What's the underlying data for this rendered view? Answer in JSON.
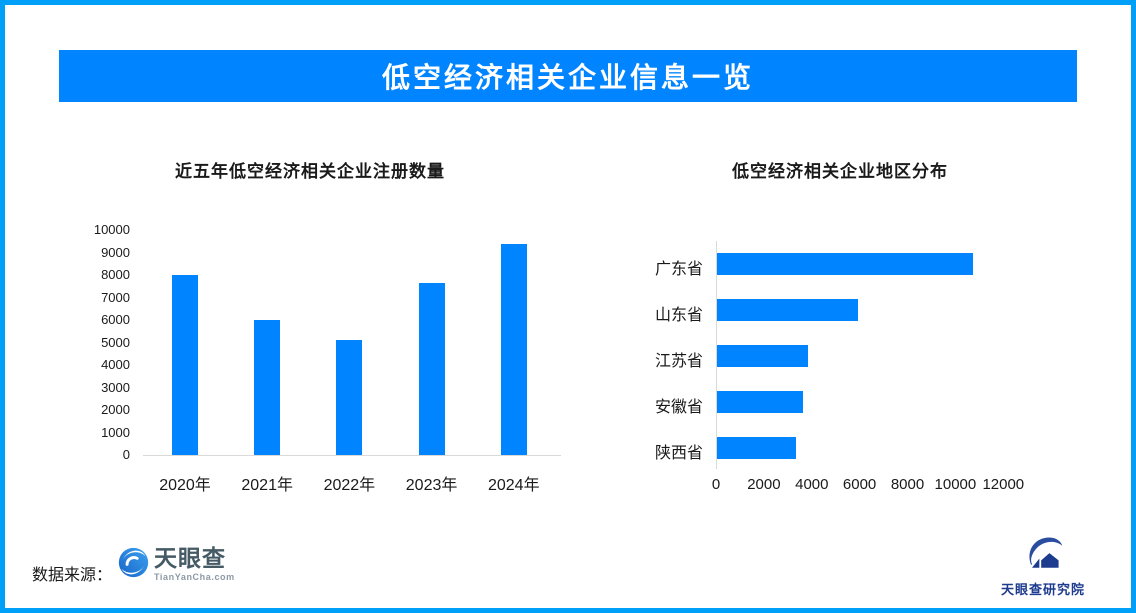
{
  "page": {
    "title": "低空经济相关企业信息一览"
  },
  "colors": {
    "border": "#00A0F8",
    "banner": "#0084FF",
    "bar": "#0084FF",
    "axis_line": "#D9D9D9",
    "tyc_name": "#455A64",
    "tyc_domain": "#8C9AA6",
    "institute": "#1E3C8F"
  },
  "chart_data": [
    {
      "type": "bar",
      "title": "近五年低空经济相关企业注册数量",
      "categories": [
        "2020年",
        "2021年",
        "2022年",
        "2023年",
        "2024年"
      ],
      "values": [
        8000,
        6000,
        5100,
        7650,
        9400
      ],
      "xlabel": "",
      "ylabel": "",
      "ylim": [
        0,
        10000
      ],
      "ytick_step": 1000,
      "grid": false,
      "legend": false,
      "bar_color": "#0084FF"
    },
    {
      "type": "bar-horizontal",
      "title": "低空经济相关企业地区分布",
      "categories": [
        "广东省",
        "山东省",
        "江苏省",
        "安徽省",
        "陕西省"
      ],
      "values": [
        10700,
        5900,
        3800,
        3600,
        3300
      ],
      "xlabel": "",
      "ylabel": "",
      "xlim": [
        0,
        12000
      ],
      "xtick_step": 2000,
      "grid": false,
      "legend": false,
      "bar_color": "#0084FF"
    }
  ],
  "footer": {
    "source_label": "数据来源：",
    "tianyancha_name": "天眼查",
    "tianyancha_domain": "TianYanCha.com",
    "institute_name": "天眼查研究院"
  }
}
